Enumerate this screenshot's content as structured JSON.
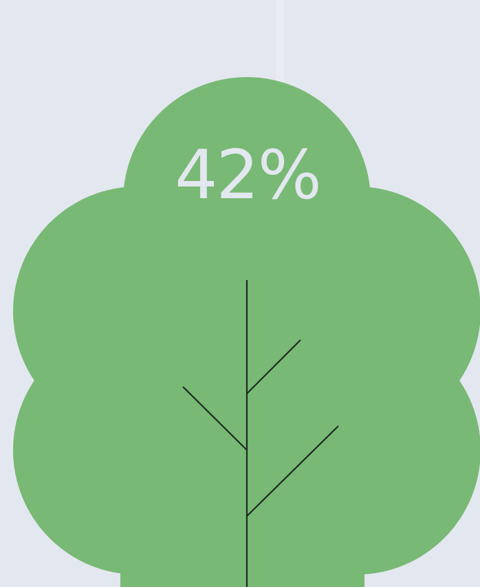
{
  "badge": {
    "text": "42%"
  }
}
